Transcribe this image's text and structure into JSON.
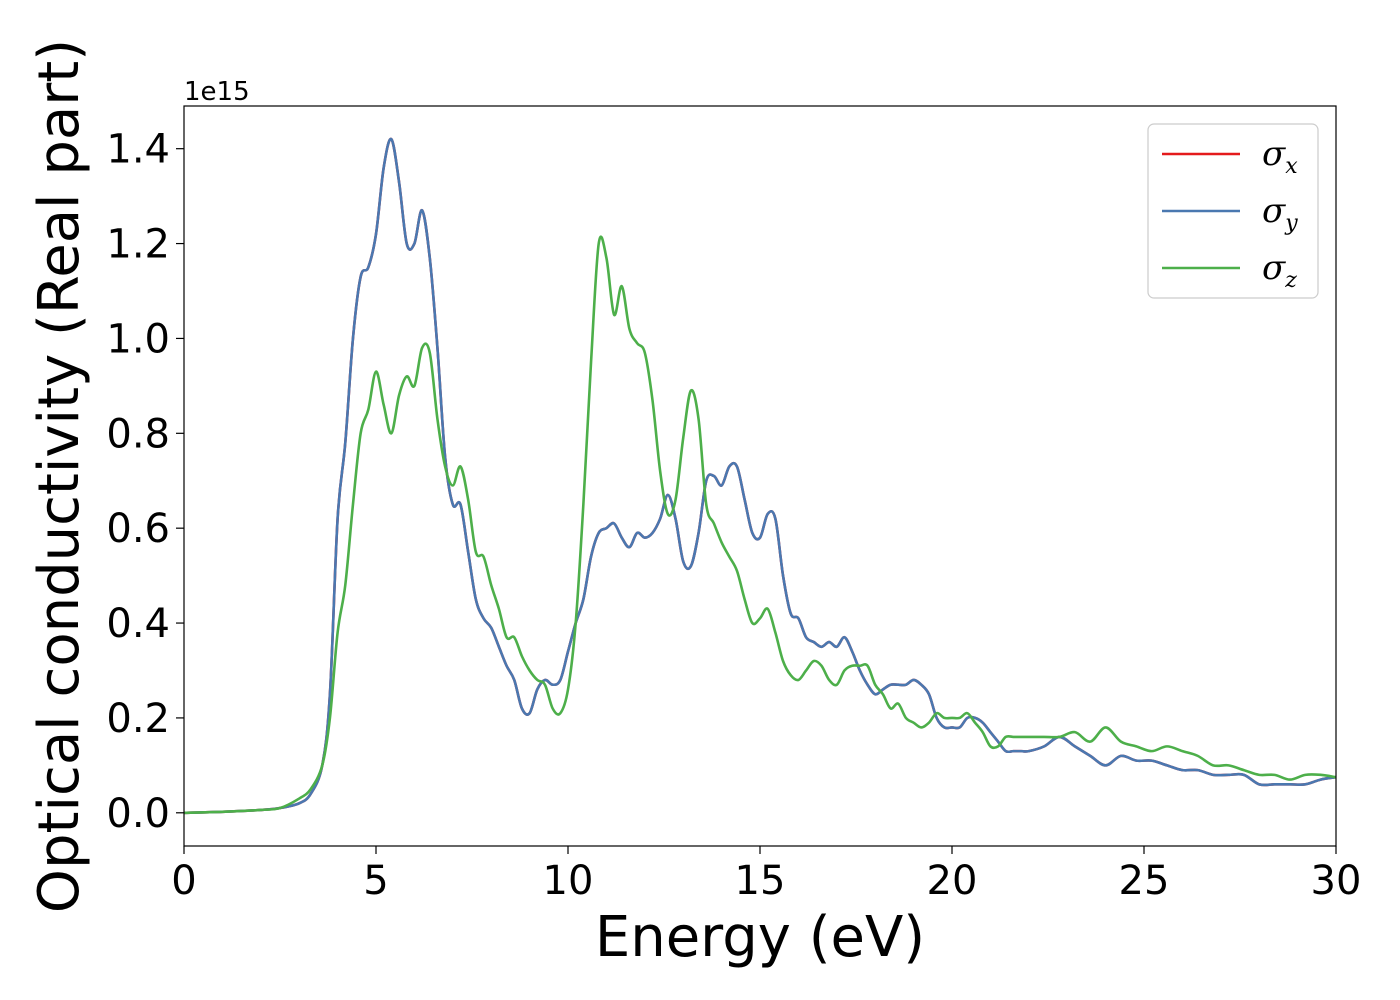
{
  "chart_data": {
    "type": "line",
    "xlabel": "Energy (eV)",
    "ylabel": "Optical conductivity (Real part)",
    "y_offset_text": "1e15",
    "xlim": [
      0,
      30
    ],
    "ylim": [
      -0.07,
      1.49
    ],
    "xticks": [
      0,
      5,
      10,
      15,
      20,
      25,
      30
    ],
    "xtick_labels": [
      "0",
      "5",
      "10",
      "15",
      "20",
      "25",
      "30"
    ],
    "yticks": [
      0.0,
      0.2,
      0.4,
      0.6,
      0.8,
      1.0,
      1.2,
      1.4
    ],
    "ytick_labels": [
      "0.0",
      "0.2",
      "0.4",
      "0.6",
      "0.8",
      "1.0",
      "1.2",
      "1.4"
    ],
    "grid": false,
    "legend_position": "top-right",
    "series": [
      {
        "name": "σx",
        "base": "σ",
        "sub": "x",
        "color": "#e41a1c",
        "x": [
          0,
          1,
          2,
          2.5,
          3,
          3.3,
          3.6,
          3.8,
          4.0,
          4.2,
          4.4,
          4.6,
          4.8,
          5.0,
          5.2,
          5.4,
          5.6,
          5.8,
          6.0,
          6.2,
          6.4,
          6.6,
          6.8,
          7.0,
          7.2,
          7.4,
          7.6,
          7.8,
          8.0,
          8.2,
          8.4,
          8.6,
          8.8,
          9.0,
          9.2,
          9.4,
          9.6,
          9.8,
          10.0,
          10.2,
          10.4,
          10.6,
          10.8,
          11.0,
          11.2,
          11.4,
          11.6,
          11.8,
          12.0,
          12.2,
          12.4,
          12.6,
          12.8,
          13.0,
          13.2,
          13.4,
          13.6,
          13.8,
          14.0,
          14.2,
          14.4,
          14.6,
          14.8,
          15.0,
          15.2,
          15.4,
          15.6,
          15.8,
          16.0,
          16.2,
          16.4,
          16.6,
          16.8,
          17.0,
          17.2,
          17.4,
          17.6,
          17.8,
          18.0,
          18.2,
          18.4,
          18.6,
          18.8,
          19.0,
          19.2,
          19.4,
          19.6,
          19.8,
          20.0,
          20.2,
          20.4,
          20.6,
          20.8,
          21.0,
          21.2,
          21.4,
          21.6,
          21.8,
          22.0,
          22.4,
          22.8,
          23.2,
          23.6,
          24.0,
          24.4,
          24.8,
          25.2,
          25.6,
          26.0,
          26.4,
          26.8,
          27.2,
          27.6,
          28.0,
          28.4,
          28.8,
          29.2,
          29.6,
          30.0
        ],
        "y": [
          0.0,
          0.002,
          0.006,
          0.01,
          0.02,
          0.04,
          0.1,
          0.25,
          0.62,
          0.78,
          1.0,
          1.13,
          1.15,
          1.22,
          1.36,
          1.42,
          1.33,
          1.2,
          1.2,
          1.27,
          1.17,
          0.98,
          0.75,
          0.65,
          0.65,
          0.55,
          0.45,
          0.41,
          0.39,
          0.35,
          0.31,
          0.28,
          0.22,
          0.21,
          0.26,
          0.28,
          0.27,
          0.28,
          0.34,
          0.4,
          0.45,
          0.54,
          0.59,
          0.6,
          0.61,
          0.58,
          0.56,
          0.59,
          0.58,
          0.59,
          0.62,
          0.67,
          0.62,
          0.53,
          0.52,
          0.59,
          0.7,
          0.71,
          0.69,
          0.73,
          0.73,
          0.66,
          0.59,
          0.58,
          0.63,
          0.62,
          0.5,
          0.42,
          0.41,
          0.37,
          0.36,
          0.35,
          0.36,
          0.35,
          0.37,
          0.34,
          0.3,
          0.27,
          0.25,
          0.26,
          0.27,
          0.27,
          0.27,
          0.28,
          0.27,
          0.25,
          0.2,
          0.18,
          0.18,
          0.18,
          0.2,
          0.2,
          0.19,
          0.17,
          0.15,
          0.13,
          0.13,
          0.13,
          0.13,
          0.14,
          0.16,
          0.14,
          0.12,
          0.1,
          0.12,
          0.11,
          0.11,
          0.1,
          0.09,
          0.09,
          0.08,
          0.08,
          0.08,
          0.06,
          0.06,
          0.06,
          0.06,
          0.07,
          0.075
        ]
      },
      {
        "name": "σy",
        "base": "σ",
        "sub": "y",
        "color": "#4a78b0",
        "x": [
          0,
          1,
          2,
          2.5,
          3,
          3.3,
          3.6,
          3.8,
          4.0,
          4.2,
          4.4,
          4.6,
          4.8,
          5.0,
          5.2,
          5.4,
          5.6,
          5.8,
          6.0,
          6.2,
          6.4,
          6.6,
          6.8,
          7.0,
          7.2,
          7.4,
          7.6,
          7.8,
          8.0,
          8.2,
          8.4,
          8.6,
          8.8,
          9.0,
          9.2,
          9.4,
          9.6,
          9.8,
          10.0,
          10.2,
          10.4,
          10.6,
          10.8,
          11.0,
          11.2,
          11.4,
          11.6,
          11.8,
          12.0,
          12.2,
          12.4,
          12.6,
          12.8,
          13.0,
          13.2,
          13.4,
          13.6,
          13.8,
          14.0,
          14.2,
          14.4,
          14.6,
          14.8,
          15.0,
          15.2,
          15.4,
          15.6,
          15.8,
          16.0,
          16.2,
          16.4,
          16.6,
          16.8,
          17.0,
          17.2,
          17.4,
          17.6,
          17.8,
          18.0,
          18.2,
          18.4,
          18.6,
          18.8,
          19.0,
          19.2,
          19.4,
          19.6,
          19.8,
          20.0,
          20.2,
          20.4,
          20.6,
          20.8,
          21.0,
          21.2,
          21.4,
          21.6,
          21.8,
          22.0,
          22.4,
          22.8,
          23.2,
          23.6,
          24.0,
          24.4,
          24.8,
          25.2,
          25.6,
          26.0,
          26.4,
          26.8,
          27.2,
          27.6,
          28.0,
          28.4,
          28.8,
          29.2,
          29.6,
          30.0
        ],
        "y": [
          0.0,
          0.002,
          0.006,
          0.01,
          0.02,
          0.04,
          0.1,
          0.25,
          0.62,
          0.78,
          1.0,
          1.13,
          1.15,
          1.22,
          1.36,
          1.42,
          1.33,
          1.2,
          1.2,
          1.27,
          1.17,
          0.98,
          0.75,
          0.65,
          0.65,
          0.55,
          0.45,
          0.41,
          0.39,
          0.35,
          0.31,
          0.28,
          0.22,
          0.21,
          0.26,
          0.28,
          0.27,
          0.28,
          0.34,
          0.4,
          0.45,
          0.54,
          0.59,
          0.6,
          0.61,
          0.58,
          0.56,
          0.59,
          0.58,
          0.59,
          0.62,
          0.67,
          0.62,
          0.53,
          0.52,
          0.59,
          0.7,
          0.71,
          0.69,
          0.73,
          0.73,
          0.66,
          0.59,
          0.58,
          0.63,
          0.62,
          0.5,
          0.42,
          0.41,
          0.37,
          0.36,
          0.35,
          0.36,
          0.35,
          0.37,
          0.34,
          0.3,
          0.27,
          0.25,
          0.26,
          0.27,
          0.27,
          0.27,
          0.28,
          0.27,
          0.25,
          0.2,
          0.18,
          0.18,
          0.18,
          0.2,
          0.2,
          0.19,
          0.17,
          0.15,
          0.13,
          0.13,
          0.13,
          0.13,
          0.14,
          0.16,
          0.14,
          0.12,
          0.1,
          0.12,
          0.11,
          0.11,
          0.1,
          0.09,
          0.09,
          0.08,
          0.08,
          0.08,
          0.06,
          0.06,
          0.06,
          0.06,
          0.07,
          0.075
        ]
      },
      {
        "name": "σz",
        "base": "σ",
        "sub": "z",
        "color": "#4daf4a",
        "x": [
          0,
          1,
          2,
          2.5,
          3,
          3.3,
          3.6,
          3.8,
          4.0,
          4.2,
          4.4,
          4.6,
          4.8,
          5.0,
          5.2,
          5.4,
          5.6,
          5.8,
          6.0,
          6.2,
          6.4,
          6.6,
          6.8,
          7.0,
          7.2,
          7.4,
          7.6,
          7.8,
          8.0,
          8.2,
          8.4,
          8.6,
          8.8,
          9.0,
          9.2,
          9.4,
          9.6,
          9.8,
          10.0,
          10.2,
          10.4,
          10.6,
          10.8,
          11.0,
          11.2,
          11.4,
          11.6,
          11.8,
          12.0,
          12.2,
          12.4,
          12.6,
          12.8,
          13.0,
          13.2,
          13.4,
          13.6,
          13.8,
          14.0,
          14.2,
          14.4,
          14.6,
          14.8,
          15.0,
          15.2,
          15.4,
          15.6,
          15.8,
          16.0,
          16.2,
          16.4,
          16.6,
          16.8,
          17.0,
          17.2,
          17.4,
          17.6,
          17.8,
          18.0,
          18.2,
          18.4,
          18.6,
          18.8,
          19.0,
          19.2,
          19.4,
          19.6,
          19.8,
          20.0,
          20.2,
          20.4,
          20.6,
          20.8,
          21.0,
          21.2,
          21.4,
          21.6,
          21.8,
          22.0,
          22.4,
          22.8,
          23.2,
          23.6,
          24.0,
          24.4,
          24.8,
          25.2,
          25.6,
          26.0,
          26.4,
          26.8,
          27.2,
          27.6,
          28.0,
          28.4,
          28.8,
          29.2,
          29.6,
          30.0
        ],
        "y": [
          0.0,
          0.002,
          0.006,
          0.01,
          0.03,
          0.05,
          0.1,
          0.2,
          0.38,
          0.48,
          0.65,
          0.8,
          0.85,
          0.93,
          0.86,
          0.8,
          0.88,
          0.92,
          0.9,
          0.98,
          0.97,
          0.83,
          0.73,
          0.69,
          0.73,
          0.66,
          0.55,
          0.54,
          0.48,
          0.43,
          0.37,
          0.37,
          0.33,
          0.3,
          0.28,
          0.27,
          0.22,
          0.21,
          0.26,
          0.4,
          0.65,
          0.95,
          1.2,
          1.17,
          1.05,
          1.11,
          1.02,
          0.99,
          0.97,
          0.87,
          0.72,
          0.63,
          0.66,
          0.79,
          0.89,
          0.83,
          0.65,
          0.61,
          0.57,
          0.54,
          0.51,
          0.45,
          0.4,
          0.41,
          0.43,
          0.38,
          0.32,
          0.29,
          0.28,
          0.3,
          0.32,
          0.31,
          0.28,
          0.27,
          0.3,
          0.31,
          0.31,
          0.31,
          0.27,
          0.25,
          0.22,
          0.23,
          0.2,
          0.19,
          0.18,
          0.19,
          0.21,
          0.2,
          0.2,
          0.2,
          0.21,
          0.19,
          0.17,
          0.14,
          0.14,
          0.16,
          0.16,
          0.16,
          0.16,
          0.16,
          0.16,
          0.17,
          0.15,
          0.18,
          0.15,
          0.14,
          0.13,
          0.14,
          0.13,
          0.12,
          0.1,
          0.1,
          0.09,
          0.08,
          0.08,
          0.07,
          0.08,
          0.08,
          0.075
        ]
      }
    ]
  }
}
